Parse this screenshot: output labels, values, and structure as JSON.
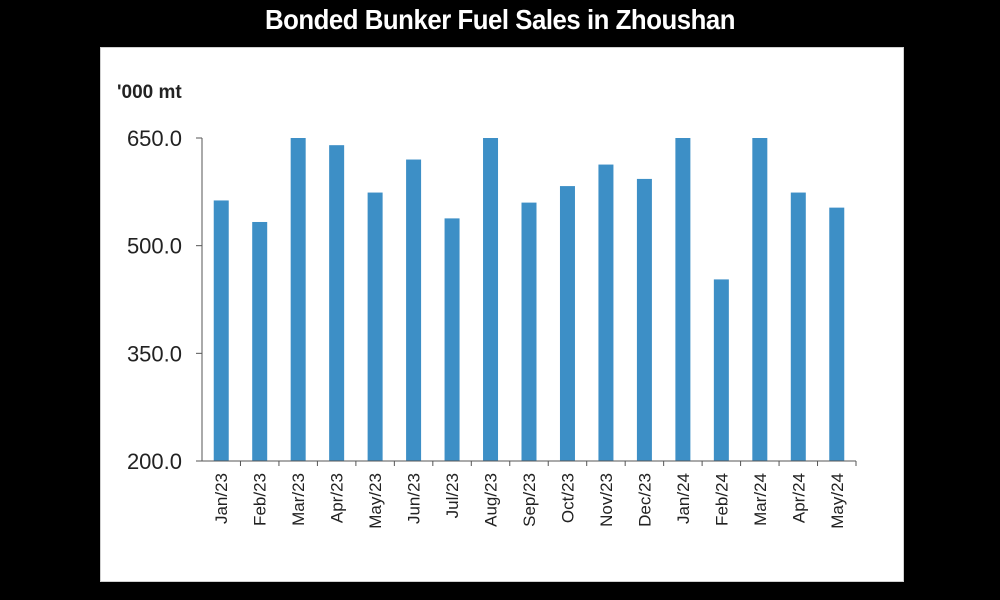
{
  "chart_data": {
    "type": "bar",
    "title": "Bonded Bunker Fuel Sales in Zhoushan",
    "ylabel": "'000 mt",
    "xlabel": "",
    "categories": [
      "Jan/23",
      "Feb/23",
      "Mar/23",
      "Apr/23",
      "May/23",
      "Jun/23",
      "Jul/23",
      "Aug/23",
      "Sep/23",
      "Oct/23",
      "Nov/23",
      "Dec/23",
      "Jan/24",
      "Feb/24",
      "Mar/24",
      "Apr/24",
      "May/24"
    ],
    "values": [
      563,
      533,
      650,
      640,
      574,
      620,
      538,
      650,
      560,
      583,
      613,
      593,
      650,
      453,
      650,
      574,
      553
    ],
    "ylim": [
      200,
      650
    ],
    "yticks": [
      "200.0",
      "350.0",
      "500.0",
      "650.0"
    ],
    "ytick_values": [
      200,
      350,
      500,
      650
    ],
    "bar_color": "#3d8fc6",
    "grid": false
  }
}
